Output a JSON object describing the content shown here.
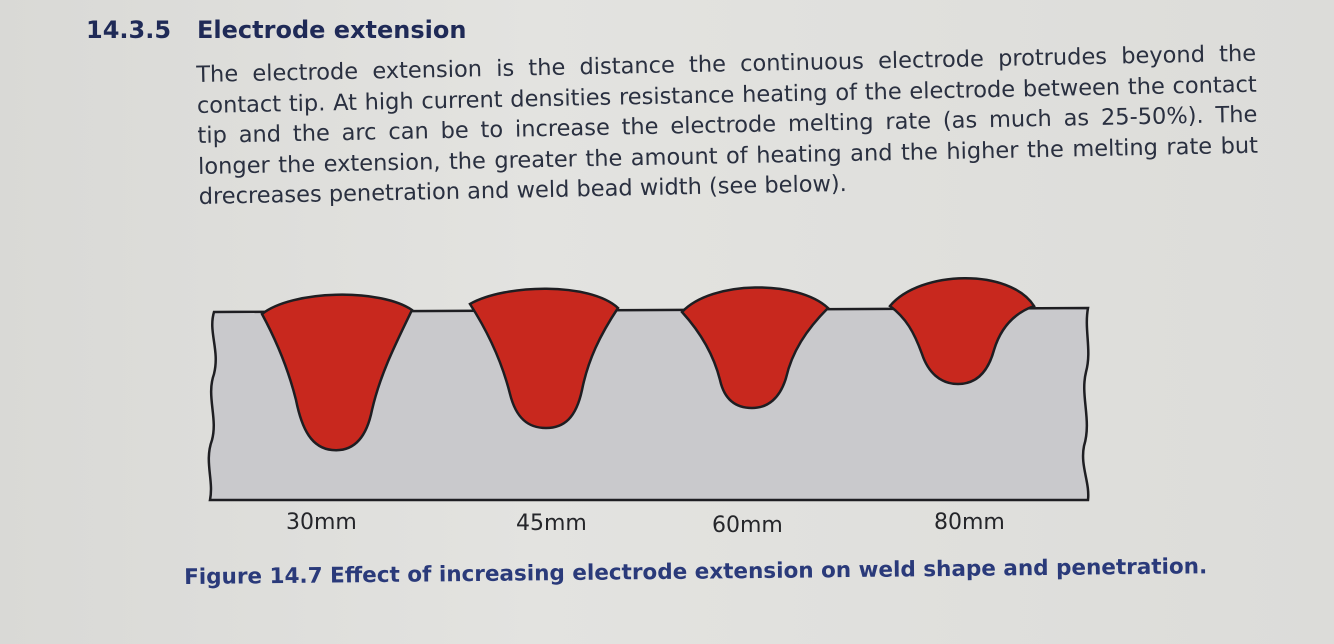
{
  "section": {
    "number": "14.3.5",
    "title": "Electrode extension"
  },
  "body_text": "The electrode extension is the distance the continuous electrode protrudes beyond the contact tip. At high current densities resistance heating of the electrode between the contact tip and the arc can be to increase the electrode melting rate (as much as 25-50%). The longer the extension, the greater the amount of heating and the higher the melting rate but drecreases penetration and weld bead width (see below).",
  "figure": {
    "labels": [
      "30mm",
      "45mm",
      "60mm",
      "80mm"
    ],
    "caption": "Figure 14.7 Effect of increasing electrode extension on weld shape and penetration."
  },
  "colors": {
    "heading": "#1f2a57",
    "caption": "#2a3a7a",
    "weld": "#c8281e",
    "base_metal": "#c9c9cc"
  }
}
